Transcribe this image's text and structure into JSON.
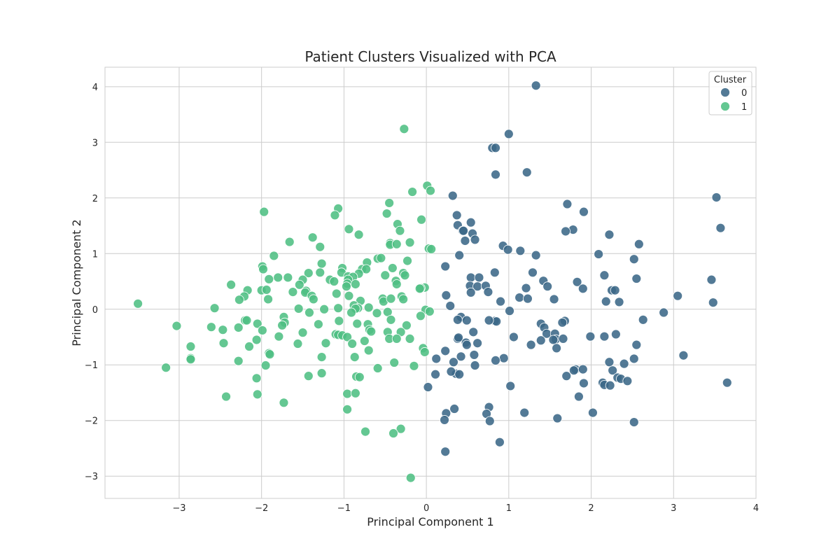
{
  "chart_data": {
    "type": "scatter",
    "title": "Patient Clusters Visualized with PCA",
    "xlabel": "Principal Component 1",
    "ylabel": "Principal Component 2",
    "xlim": [
      -3.9,
      4.0
    ],
    "ylim": [
      -3.4,
      4.35
    ],
    "xticks": [
      -3,
      -2,
      -1,
      0,
      1,
      2,
      3,
      4
    ],
    "xtick_labels": [
      "−3",
      "−2",
      "−1",
      "0",
      "1",
      "2",
      "3",
      "4"
    ],
    "yticks": [
      -3,
      -2,
      -1,
      0,
      1,
      2,
      3,
      4
    ],
    "ytick_labels": [
      "−3",
      "−2",
      "−1",
      "0",
      "1",
      "2",
      "3",
      "4"
    ],
    "grid": true,
    "legend": {
      "title": "Cluster",
      "placement": "top-right"
    },
    "series": [
      {
        "name": "0",
        "color": "#3b6888",
        "points": [
          [
            1.33,
            4.02
          ],
          [
            1.0,
            3.15
          ],
          [
            0.8,
            2.9
          ],
          [
            0.84,
            2.9
          ],
          [
            1.22,
            2.46
          ],
          [
            0.84,
            2.42
          ],
          [
            0.32,
            2.04
          ],
          [
            3.52,
            2.01
          ],
          [
            1.71,
            1.89
          ],
          [
            1.91,
            1.75
          ],
          [
            0.37,
            1.69
          ],
          [
            0.54,
            1.56
          ],
          [
            0.38,
            1.51
          ],
          [
            3.57,
            1.46
          ],
          [
            1.78,
            1.43
          ],
          [
            0.44,
            1.41
          ],
          [
            0.45,
            1.41
          ],
          [
            1.69,
            1.4
          ],
          [
            0.56,
            1.36
          ],
          [
            2.22,
            1.34
          ],
          [
            0.59,
            1.25
          ],
          [
            0.47,
            1.23
          ],
          [
            2.58,
            1.17
          ],
          [
            0.93,
            1.14
          ],
          [
            0.99,
            1.07
          ],
          [
            1.14,
            1.05
          ],
          [
            2.09,
            0.99
          ],
          [
            0.4,
            0.97
          ],
          [
            1.33,
            0.97
          ],
          [
            2.52,
            0.9
          ],
          [
            0.23,
            0.77
          ],
          [
            1.29,
            0.66
          ],
          [
            0.83,
            0.66
          ],
          [
            2.16,
            0.61
          ],
          [
            0.54,
            0.57
          ],
          [
            0.64,
            0.57
          ],
          [
            2.55,
            0.55
          ],
          [
            1.42,
            0.51
          ],
          [
            3.46,
            0.53
          ],
          [
            1.83,
            0.49
          ],
          [
            0.53,
            0.42
          ],
          [
            0.62,
            0.41
          ],
          [
            0.72,
            0.42
          ],
          [
            1.47,
            0.41
          ],
          [
            1.9,
            0.37
          ],
          [
            1.21,
            0.38
          ],
          [
            2.25,
            0.34
          ],
          [
            2.29,
            0.34
          ],
          [
            0.54,
            0.3
          ],
          [
            0.75,
            0.31
          ],
          [
            3.05,
            0.24
          ],
          [
            0.24,
            0.25
          ],
          [
            1.13,
            0.21
          ],
          [
            1.23,
            0.19
          ],
          [
            1.55,
            0.18
          ],
          [
            2.18,
            0.14
          ],
          [
            2.34,
            0.13
          ],
          [
            0.9,
            0.14
          ],
          [
            3.48,
            0.12
          ],
          [
            0.29,
            0.06
          ],
          [
            1.01,
            -0.03
          ],
          [
            2.88,
            -0.06
          ],
          [
            0.42,
            -0.14
          ],
          [
            0.38,
            -0.19
          ],
          [
            0.49,
            -0.2
          ],
          [
            0.83,
            -0.21
          ],
          [
            0.85,
            -0.22
          ],
          [
            0.76,
            -0.2
          ],
          [
            2.63,
            -0.19
          ],
          [
            1.68,
            -0.21
          ],
          [
            1.65,
            -0.24
          ],
          [
            1.39,
            -0.26
          ],
          [
            1.43,
            -0.33
          ],
          [
            0.57,
            -0.41
          ],
          [
            1.46,
            -0.44
          ],
          [
            1.56,
            -0.44
          ],
          [
            2.3,
            -0.45
          ],
          [
            1.99,
            -0.49
          ],
          [
            2.16,
            -0.49
          ],
          [
            1.06,
            -0.5
          ],
          [
            0.38,
            -0.53
          ],
          [
            0.39,
            -0.51
          ],
          [
            1.57,
            -0.54
          ],
          [
            1.54,
            -0.55
          ],
          [
            1.66,
            -0.53
          ],
          [
            1.39,
            -0.56
          ],
          [
            0.48,
            -0.6
          ],
          [
            0.62,
            -0.61
          ],
          [
            0.49,
            -0.64
          ],
          [
            1.27,
            -0.64
          ],
          [
            2.55,
            -0.64
          ],
          [
            1.58,
            -0.7
          ],
          [
            0.23,
            -0.75
          ],
          [
            0.58,
            -0.82
          ],
          [
            0.42,
            -0.85
          ],
          [
            3.12,
            -0.83
          ],
          [
            0.12,
            -0.89
          ],
          [
            0.94,
            -0.88
          ],
          [
            2.52,
            -0.89
          ],
          [
            0.84,
            -0.92
          ],
          [
            0.33,
            -0.95
          ],
          [
            2.4,
            -0.98
          ],
          [
            2.22,
            -0.95
          ],
          [
            0.59,
            -1.01
          ],
          [
            1.81,
            -1.08
          ],
          [
            1.79,
            -1.1
          ],
          [
            1.9,
            -1.08
          ],
          [
            2.26,
            -1.1
          ],
          [
            0.11,
            -1.17
          ],
          [
            0.36,
            -1.16
          ],
          [
            0.3,
            -1.12
          ],
          [
            0.4,
            -1.17
          ],
          [
            1.7,
            -1.2
          ],
          [
            2.32,
            -1.23
          ],
          [
            2.36,
            -1.25
          ],
          [
            2.44,
            -1.29
          ],
          [
            2.14,
            -1.32
          ],
          [
            1.91,
            -1.33
          ],
          [
            2.16,
            -1.36
          ],
          [
            2.23,
            -1.37
          ],
          [
            3.65,
            -1.32
          ],
          [
            1.02,
            -1.38
          ],
          [
            0.02,
            -1.4
          ],
          [
            1.85,
            -1.57
          ],
          [
            0.76,
            -1.76
          ],
          [
            0.34,
            -1.79
          ],
          [
            1.19,
            -1.86
          ],
          [
            2.02,
            -1.86
          ],
          [
            0.24,
            -1.87
          ],
          [
            0.73,
            -1.88
          ],
          [
            1.59,
            -1.96
          ],
          [
            0.22,
            -1.99
          ],
          [
            0.77,
            -2.01
          ],
          [
            2.52,
            -2.03
          ],
          [
            0.89,
            -2.39
          ],
          [
            0.23,
            -2.56
          ]
        ]
      },
      {
        "name": "1",
        "color": "#4fbf83",
        "points": [
          [
            -0.27,
            3.24
          ],
          [
            0.01,
            2.22
          ],
          [
            -0.17,
            2.11
          ],
          [
            0.05,
            2.13
          ],
          [
            -0.45,
            1.91
          ],
          [
            -1.07,
            1.81
          ],
          [
            -1.97,
            1.75
          ],
          [
            -0.48,
            1.72
          ],
          [
            -1.11,
            1.69
          ],
          [
            -0.06,
            1.61
          ],
          [
            -0.35,
            1.53
          ],
          [
            -0.94,
            1.44
          ],
          [
            -0.32,
            1.41
          ],
          [
            -0.82,
            1.34
          ],
          [
            -1.38,
            1.29
          ],
          [
            -1.66,
            1.21
          ],
          [
            -0.2,
            1.2
          ],
          [
            -0.44,
            1.19
          ],
          [
            -0.44,
            1.16
          ],
          [
            -0.36,
            1.17
          ],
          [
            -1.29,
            1.12
          ],
          [
            0.03,
            1.09
          ],
          [
            0.06,
            1.08
          ],
          [
            -1.85,
            0.96
          ],
          [
            -0.59,
            0.91
          ],
          [
            -0.55,
            0.92
          ],
          [
            -0.23,
            0.87
          ],
          [
            -0.72,
            0.84
          ],
          [
            -1.27,
            0.82
          ],
          [
            -1.99,
            0.77
          ],
          [
            -1.98,
            0.72
          ],
          [
            -1.02,
            0.74
          ],
          [
            -0.78,
            0.72
          ],
          [
            -0.73,
            0.72
          ],
          [
            -0.41,
            0.74
          ],
          [
            -1.29,
            0.66
          ],
          [
            -1.03,
            0.66
          ],
          [
            -1.43,
            0.65
          ],
          [
            -0.28,
            0.65
          ],
          [
            -0.82,
            0.64
          ],
          [
            -0.95,
            0.59
          ],
          [
            -0.89,
            0.58
          ],
          [
            -0.26,
            0.61
          ],
          [
            -0.5,
            0.61
          ],
          [
            -1.8,
            0.57
          ],
          [
            -1.68,
            0.57
          ],
          [
            -1.91,
            0.54
          ],
          [
            -1.17,
            0.53
          ],
          [
            -0.95,
            0.53
          ],
          [
            -1.5,
            0.53
          ],
          [
            -1.12,
            0.5
          ],
          [
            -0.37,
            0.51
          ],
          [
            -0.96,
            0.46
          ],
          [
            -0.86,
            0.45
          ],
          [
            -0.36,
            0.45
          ],
          [
            -2.37,
            0.44
          ],
          [
            -1.54,
            0.44
          ],
          [
            -0.97,
            0.41
          ],
          [
            -0.02,
            0.39
          ],
          [
            -0.07,
            0.38
          ],
          [
            -0.08,
            0.37
          ],
          [
            -2.0,
            0.34
          ],
          [
            -1.94,
            0.35
          ],
          [
            -2.17,
            0.34
          ],
          [
            -1.62,
            0.31
          ],
          [
            -1.46,
            0.33
          ],
          [
            -1.47,
            0.3
          ],
          [
            -1.09,
            0.28
          ],
          [
            -0.94,
            0.24
          ],
          [
            -1.39,
            0.24
          ],
          [
            -0.3,
            0.23
          ],
          [
            -0.53,
            0.19
          ],
          [
            -0.52,
            0.14
          ],
          [
            -0.43,
            0.19
          ],
          [
            -0.28,
            0.18
          ],
          [
            -2.21,
            0.23
          ],
          [
            -2.27,
            0.17
          ],
          [
            -1.92,
            0.18
          ],
          [
            -1.37,
            0.18
          ],
          [
            -0.8,
            0.15
          ],
          [
            -3.5,
            0.1
          ],
          [
            -0.88,
            0.07
          ],
          [
            -0.83,
            0.02
          ],
          [
            -0.7,
            0.03
          ],
          [
            -1.07,
            0.02
          ],
          [
            -0.86,
            0.01
          ],
          [
            -1.24,
            0.0
          ],
          [
            -1.55,
            0.01
          ],
          [
            -0.01,
            -0.01
          ],
          [
            -2.57,
            0.02
          ],
          [
            0.04,
            -0.04
          ],
          [
            -0.47,
            -0.05
          ],
          [
            -1.42,
            -0.06
          ],
          [
            -0.91,
            -0.06
          ],
          [
            -0.6,
            -0.07
          ],
          [
            -0.07,
            -0.12
          ],
          [
            -1.73,
            -0.14
          ],
          [
            -0.43,
            -0.19
          ],
          [
            -2.2,
            -0.2
          ],
          [
            -2.18,
            -0.2
          ],
          [
            -1.06,
            -0.21
          ],
          [
            -0.84,
            -0.26
          ],
          [
            -1.72,
            -0.24
          ],
          [
            -2.05,
            -0.26
          ],
          [
            -0.71,
            -0.27
          ],
          [
            -0.24,
            -0.29
          ],
          [
            -1.75,
            -0.29
          ],
          [
            -3.03,
            -0.3
          ],
          [
            -2.61,
            -0.32
          ],
          [
            -2.28,
            -0.33
          ],
          [
            -1.31,
            -0.27
          ],
          [
            -2.47,
            -0.37
          ],
          [
            -1.99,
            -0.38
          ],
          [
            -0.69,
            -0.37
          ],
          [
            -0.67,
            -0.4
          ],
          [
            -1.5,
            -0.42
          ],
          [
            -0.47,
            -0.41
          ],
          [
            -0.31,
            -0.41
          ],
          [
            -1.1,
            -0.45
          ],
          [
            -1.07,
            -0.46
          ],
          [
            -1.02,
            -0.47
          ],
          [
            -1.79,
            -0.49
          ],
          [
            -0.96,
            -0.5
          ],
          [
            -0.45,
            -0.53
          ],
          [
            -0.2,
            -0.53
          ],
          [
            -2.06,
            -0.55
          ],
          [
            -0.75,
            -0.57
          ],
          [
            -0.36,
            -0.53
          ],
          [
            -2.46,
            -0.61
          ],
          [
            -1.22,
            -0.61
          ],
          [
            -0.9,
            -0.62
          ],
          [
            -1.56,
            -0.62
          ],
          [
            -2.15,
            -0.67
          ],
          [
            -2.86,
            -0.67
          ],
          [
            -0.04,
            -0.7
          ],
          [
            -0.7,
            -0.74
          ],
          [
            -0.02,
            -0.77
          ],
          [
            -1.91,
            -0.79
          ],
          [
            -1.9,
            -0.81
          ],
          [
            -1.27,
            -0.86
          ],
          [
            -0.87,
            -0.86
          ],
          [
            -2.86,
            -0.88
          ],
          [
            -2.86,
            -0.9
          ],
          [
            -2.28,
            -0.93
          ],
          [
            -0.39,
            -0.96
          ],
          [
            -1.95,
            -1.01
          ],
          [
            -0.15,
            -1.02
          ],
          [
            -3.16,
            -1.05
          ],
          [
            -0.59,
            -1.06
          ],
          [
            -1.27,
            -1.15
          ],
          [
            -1.43,
            -1.2
          ],
          [
            -0.85,
            -1.21
          ],
          [
            -0.81,
            -1.22
          ],
          [
            -2.06,
            -1.24
          ],
          [
            -0.96,
            -1.52
          ],
          [
            -2.05,
            -1.53
          ],
          [
            -0.86,
            -1.51
          ],
          [
            -2.43,
            -1.57
          ],
          [
            -1.73,
            -1.68
          ],
          [
            -0.96,
            -1.8
          ],
          [
            -0.74,
            -2.2
          ],
          [
            -0.31,
            -2.15
          ],
          [
            -0.4,
            -2.23
          ],
          [
            -0.19,
            -3.03
          ]
        ]
      }
    ]
  }
}
